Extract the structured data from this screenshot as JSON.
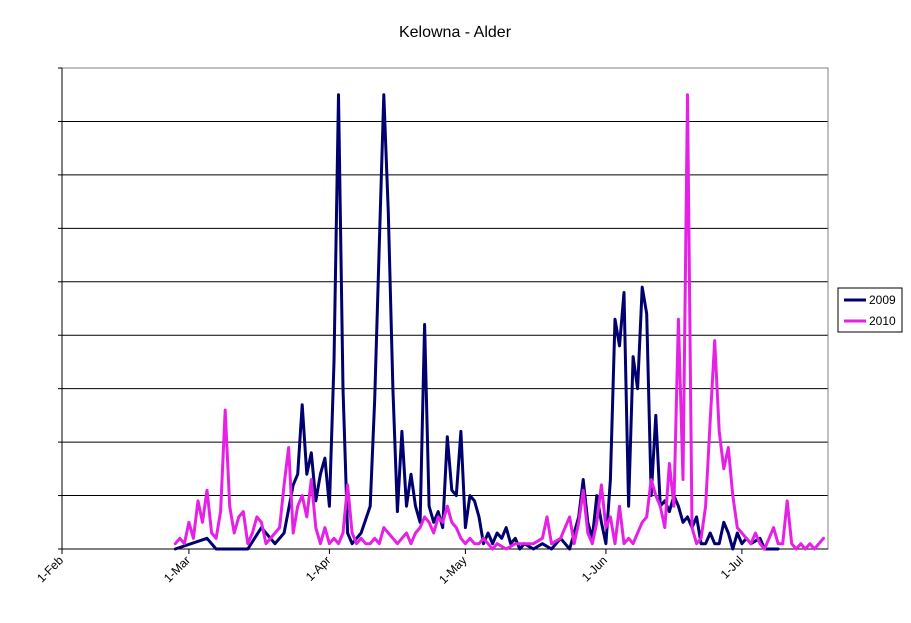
{
  "chart_data": {
    "type": "line",
    "title": "Kelowna - Alder",
    "xlabel": "",
    "ylabel": "",
    "x_axis": {
      "start": "1-Feb",
      "end": "20-Jul",
      "tick_labels": [
        "1-Feb",
        "1-Mar",
        "1-Apr",
        "1-May",
        "1-Jun",
        "1-Jul"
      ],
      "tick_dates": [
        "02-01",
        "03-01",
        "04-01",
        "05-01",
        "06-01",
        "07-01"
      ]
    },
    "ylim": [
      0,
      9
    ],
    "y_gridlines": [
      1,
      2,
      3,
      4,
      5,
      6,
      7,
      8,
      9
    ],
    "y_tick_labels_shown": false,
    "grid": true,
    "legend_position": "right",
    "series": [
      {
        "name": "2009",
        "color": "#00006e",
        "points": [
          [
            "02-26",
            0
          ],
          [
            "03-05",
            0.2
          ],
          [
            "03-07",
            0
          ],
          [
            "03-14",
            0
          ],
          [
            "03-17",
            0.4
          ],
          [
            "03-20",
            0.1
          ],
          [
            "03-22",
            0.3
          ],
          [
            "03-24",
            1.2
          ],
          [
            "03-25",
            1.4
          ],
          [
            "03-26",
            2.7
          ],
          [
            "03-27",
            1.4
          ],
          [
            "03-28",
            1.8
          ],
          [
            "03-29",
            0.9
          ],
          [
            "03-30",
            1.4
          ],
          [
            "03-31",
            1.7
          ],
          [
            "04-01",
            0.8
          ],
          [
            "04-02",
            3.5
          ],
          [
            "04-03",
            8.5
          ],
          [
            "04-04",
            3.0
          ],
          [
            "04-05",
            0.3
          ],
          [
            "04-06",
            0.1
          ],
          [
            "04-07",
            0.2
          ],
          [
            "04-08",
            0.3
          ],
          [
            "04-10",
            0.8
          ],
          [
            "04-11",
            2.8
          ],
          [
            "04-12",
            5.7
          ],
          [
            "04-13",
            8.5
          ],
          [
            "04-14",
            6.3
          ],
          [
            "04-15",
            3.0
          ],
          [
            "04-16",
            0.7
          ],
          [
            "04-17",
            2.2
          ],
          [
            "04-18",
            0.8
          ],
          [
            "04-19",
            1.4
          ],
          [
            "04-20",
            0.8
          ],
          [
            "04-21",
            0.5
          ],
          [
            "04-22",
            4.2
          ],
          [
            "04-23",
            0.8
          ],
          [
            "04-24",
            0.5
          ],
          [
            "04-25",
            0.7
          ],
          [
            "04-26",
            0.4
          ],
          [
            "04-27",
            2.1
          ],
          [
            "04-28",
            1.1
          ],
          [
            "04-29",
            1.0
          ],
          [
            "04-30",
            2.2
          ],
          [
            "05-01",
            0.4
          ],
          [
            "05-02",
            1.0
          ],
          [
            "05-03",
            0.9
          ],
          [
            "05-04",
            0.6
          ],
          [
            "05-05",
            0.1
          ],
          [
            "05-06",
            0.3
          ],
          [
            "05-07",
            0.1
          ],
          [
            "05-08",
            0.3
          ],
          [
            "05-09",
            0.2
          ],
          [
            "05-10",
            0.4
          ],
          [
            "05-11",
            0.1
          ],
          [
            "05-12",
            0.2
          ],
          [
            "05-13",
            0.0
          ],
          [
            "05-14",
            0.1
          ],
          [
            "05-16",
            0.0
          ],
          [
            "05-18",
            0.1
          ],
          [
            "05-20",
            0.0
          ],
          [
            "05-22",
            0.2
          ],
          [
            "05-24",
            0.0
          ],
          [
            "05-25",
            0.3
          ],
          [
            "05-26",
            0.6
          ],
          [
            "05-27",
            1.3
          ],
          [
            "05-28",
            0.5
          ],
          [
            "05-29",
            0.2
          ],
          [
            "05-30",
            1.0
          ],
          [
            "05-31",
            0.5
          ],
          [
            "06-01",
            0.1
          ],
          [
            "06-02",
            1.3
          ],
          [
            "06-03",
            4.3
          ],
          [
            "06-04",
            3.8
          ],
          [
            "06-05",
            4.8
          ],
          [
            "06-06",
            0.8
          ],
          [
            "06-07",
            3.6
          ],
          [
            "06-08",
            3.0
          ],
          [
            "06-09",
            4.9
          ],
          [
            "06-10",
            4.4
          ],
          [
            "06-11",
            1.0
          ],
          [
            "06-12",
            2.5
          ],
          [
            "06-13",
            0.8
          ],
          [
            "06-14",
            0.9
          ],
          [
            "06-15",
            0.7
          ],
          [
            "06-16",
            1.0
          ],
          [
            "06-17",
            0.8
          ],
          [
            "06-18",
            0.5
          ],
          [
            "06-19",
            0.6
          ],
          [
            "06-20",
            0.4
          ],
          [
            "06-21",
            0.6
          ],
          [
            "06-22",
            0.1
          ],
          [
            "06-23",
            0.1
          ],
          [
            "06-24",
            0.3
          ],
          [
            "06-25",
            0.1
          ],
          [
            "06-26",
            0.1
          ],
          [
            "06-27",
            0.5
          ],
          [
            "06-28",
            0.3
          ],
          [
            "06-29",
            0.0
          ],
          [
            "06-30",
            0.3
          ],
          [
            "07-01",
            0.1
          ],
          [
            "07-02",
            0.2
          ],
          [
            "07-03",
            0.1
          ],
          [
            "07-05",
            0.2
          ],
          [
            "07-06",
            0.0
          ],
          [
            "07-09",
            0.0
          ]
        ]
      },
      {
        "name": "2010",
        "color": "#e620e6",
        "points": [
          [
            "02-26",
            0.1
          ],
          [
            "02-27",
            0.2
          ],
          [
            "02-28",
            0.1
          ],
          [
            "03-01",
            0.5
          ],
          [
            "03-02",
            0.2
          ],
          [
            "03-03",
            0.9
          ],
          [
            "03-04",
            0.5
          ],
          [
            "03-05",
            1.1
          ],
          [
            "03-06",
            0.3
          ],
          [
            "03-07",
            0.2
          ],
          [
            "03-08",
            0.7
          ],
          [
            "03-09",
            2.6
          ],
          [
            "03-10",
            0.8
          ],
          [
            "03-11",
            0.3
          ],
          [
            "03-12",
            0.6
          ],
          [
            "03-13",
            0.7
          ],
          [
            "03-14",
            0.1
          ],
          [
            "03-15",
            0.3
          ],
          [
            "03-16",
            0.6
          ],
          [
            "03-17",
            0.5
          ],
          [
            "03-18",
            0.1
          ],
          [
            "03-20",
            0.3
          ],
          [
            "03-21",
            0.4
          ],
          [
            "03-22",
            1.2
          ],
          [
            "03-23",
            1.9
          ],
          [
            "03-24",
            0.3
          ],
          [
            "03-25",
            0.8
          ],
          [
            "03-26",
            1.0
          ],
          [
            "03-27",
            0.6
          ],
          [
            "03-28",
            1.3
          ],
          [
            "03-29",
            0.4
          ],
          [
            "03-30",
            0.1
          ],
          [
            "03-31",
            0.4
          ],
          [
            "04-01",
            0.1
          ],
          [
            "04-02",
            0.2
          ],
          [
            "04-03",
            0.1
          ],
          [
            "04-04",
            0.3
          ],
          [
            "04-05",
            1.2
          ],
          [
            "04-06",
            0.3
          ],
          [
            "04-07",
            0.1
          ],
          [
            "04-08",
            0.2
          ],
          [
            "04-09",
            0.1
          ],
          [
            "04-10",
            0.1
          ],
          [
            "04-11",
            0.2
          ],
          [
            "04-12",
            0.1
          ],
          [
            "04-13",
            0.4
          ],
          [
            "04-14",
            0.3
          ],
          [
            "04-15",
            0.2
          ],
          [
            "04-16",
            0.1
          ],
          [
            "04-17",
            0.2
          ],
          [
            "04-18",
            0.3
          ],
          [
            "04-19",
            0.1
          ],
          [
            "04-20",
            0.3
          ],
          [
            "04-21",
            0.4
          ],
          [
            "04-22",
            0.6
          ],
          [
            "04-23",
            0.5
          ],
          [
            "04-24",
            0.3
          ],
          [
            "04-25",
            0.6
          ],
          [
            "04-26",
            0.5
          ],
          [
            "04-27",
            0.8
          ],
          [
            "04-28",
            0.5
          ],
          [
            "04-29",
            0.4
          ],
          [
            "04-30",
            0.2
          ],
          [
            "05-01",
            0.1
          ],
          [
            "05-02",
            0.2
          ],
          [
            "05-03",
            0.1
          ],
          [
            "05-04",
            0.1
          ],
          [
            "05-05",
            0.2
          ],
          [
            "05-06",
            0.1
          ],
          [
            "05-07",
            0.0
          ],
          [
            "05-08",
            0.1
          ],
          [
            "05-10",
            0.0
          ],
          [
            "05-12",
            0.1
          ],
          [
            "05-14",
            0.1
          ],
          [
            "05-16",
            0.1
          ],
          [
            "05-18",
            0.2
          ],
          [
            "05-19",
            0.6
          ],
          [
            "05-20",
            0.1
          ],
          [
            "05-22",
            0.2
          ],
          [
            "05-23",
            0.4
          ],
          [
            "05-24",
            0.6
          ],
          [
            "05-25",
            0.1
          ],
          [
            "05-26",
            0.5
          ],
          [
            "05-27",
            1.1
          ],
          [
            "05-28",
            0.3
          ],
          [
            "05-29",
            0.1
          ],
          [
            "05-30",
            0.5
          ],
          [
            "05-31",
            1.2
          ],
          [
            "06-01",
            0.4
          ],
          [
            "06-02",
            0.6
          ],
          [
            "06-03",
            0.1
          ],
          [
            "06-04",
            0.8
          ],
          [
            "06-05",
            0.1
          ],
          [
            "06-06",
            0.2
          ],
          [
            "06-07",
            0.1
          ],
          [
            "06-08",
            0.3
          ],
          [
            "06-09",
            0.5
          ],
          [
            "06-10",
            0.6
          ],
          [
            "06-11",
            1.3
          ],
          [
            "06-12",
            1.0
          ],
          [
            "06-13",
            0.8
          ],
          [
            "06-14",
            0.4
          ],
          [
            "06-15",
            1.6
          ],
          [
            "06-16",
            0.8
          ],
          [
            "06-17",
            4.3
          ],
          [
            "06-18",
            1.3
          ],
          [
            "06-19",
            8.5
          ],
          [
            "06-20",
            0.4
          ],
          [
            "06-21",
            0.1
          ],
          [
            "06-22",
            0.2
          ],
          [
            "06-23",
            0.8
          ],
          [
            "06-24",
            2.4
          ],
          [
            "06-25",
            3.9
          ],
          [
            "06-26",
            2.2
          ],
          [
            "06-27",
            1.5
          ],
          [
            "06-28",
            1.9
          ],
          [
            "06-29",
            1.0
          ],
          [
            "06-30",
            0.4
          ],
          [
            "07-01",
            0.3
          ],
          [
            "07-02",
            0.2
          ],
          [
            "07-03",
            0.1
          ],
          [
            "07-04",
            0.3
          ],
          [
            "07-05",
            0.1
          ],
          [
            "07-06",
            0.0
          ],
          [
            "07-07",
            0.2
          ],
          [
            "07-08",
            0.4
          ],
          [
            "07-09",
            0.1
          ],
          [
            "07-10",
            0.1
          ],
          [
            "07-11",
            0.9
          ],
          [
            "07-12",
            0.1
          ],
          [
            "07-13",
            0.0
          ],
          [
            "07-14",
            0.1
          ],
          [
            "07-15",
            0.0
          ],
          [
            "07-16",
            0.1
          ],
          [
            "07-17",
            0.0
          ],
          [
            "07-18",
            0.1
          ],
          [
            "07-19",
            0.2
          ]
        ]
      }
    ]
  }
}
